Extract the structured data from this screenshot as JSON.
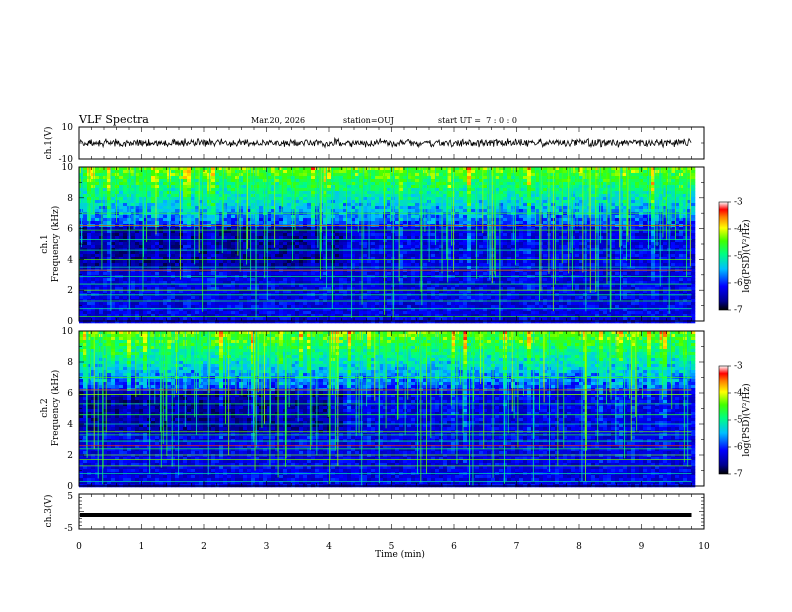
{
  "header": {
    "title": "VLF Spectra",
    "date": "Mar.20, 2026",
    "station": "station=OUJ",
    "start_ut": "start UT =  7 : 0 : 0"
  },
  "chart_data": [
    {
      "type": "line",
      "panel": "ch1-waveform",
      "ylabel": "ch.1(V)",
      "ylim": [
        -10,
        10
      ],
      "yticks": [
        "10",
        "-10"
      ],
      "series_mean": 0,
      "series_amplitude_approx": 2
    },
    {
      "type": "heatmap",
      "panel": "ch1-spectrogram",
      "ylabel": "ch.1\nFrequency (kHz)",
      "ylabel_line1": "ch.1",
      "ylabel_line2": "Frequency (kHz)",
      "ylim": [
        0,
        10
      ],
      "yticks": [
        "0",
        "2",
        "4",
        "6",
        "8",
        "10"
      ],
      "colorbar": {
        "label": "log(PSD)(V²/Hz)",
        "range": [
          -7,
          -3
        ],
        "ticks": [
          "-3",
          "-4",
          "-5",
          "-6",
          "-7"
        ]
      },
      "horizontal_lines_khz": [
        0.3,
        0.8,
        1.3,
        1.7,
        2.0,
        2.4,
        2.9,
        3.3,
        3.5,
        4.0,
        4.6,
        5.3,
        5.9,
        6.2,
        7.0
      ],
      "red_lines_khz": [
        3.3,
        6.2
      ]
    },
    {
      "type": "heatmap",
      "panel": "ch2-spectrogram",
      "ylabel": "ch.2\nFrequency (kHz)",
      "ylabel_line1": "ch.2",
      "ylabel_line2": "Frequency (kHz)",
      "ylim": [
        0,
        10
      ],
      "yticks": [
        "0",
        "2",
        "4",
        "6",
        "8",
        "10"
      ],
      "colorbar": {
        "label": "log(PSD)(V²/Hz)",
        "range": [
          -7,
          -3
        ],
        "ticks": [
          "-3",
          "-4",
          "-5",
          "-6",
          "-7"
        ]
      },
      "horizontal_lines_khz": [
        0.3,
        0.8,
        1.3,
        1.7,
        2.0,
        2.4,
        2.9,
        3.3,
        3.5,
        4.0,
        4.6,
        5.3,
        5.9,
        6.2,
        7.0
      ],
      "red_lines_khz": [
        2.6,
        6.2
      ]
    },
    {
      "type": "line",
      "panel": "ch3-waveform",
      "ylabel": "ch.3(V)",
      "ylim": [
        -5,
        5
      ],
      "yticks": [
        "5",
        "-5"
      ],
      "series_mean": -1,
      "xlabel": "Time (min)",
      "xlim": [
        0,
        10
      ],
      "xticks": [
        "0",
        "1",
        "2",
        "3",
        "4",
        "5",
        "6",
        "7",
        "8",
        "9",
        "10"
      ],
      "data_end_min": 9.8
    }
  ]
}
